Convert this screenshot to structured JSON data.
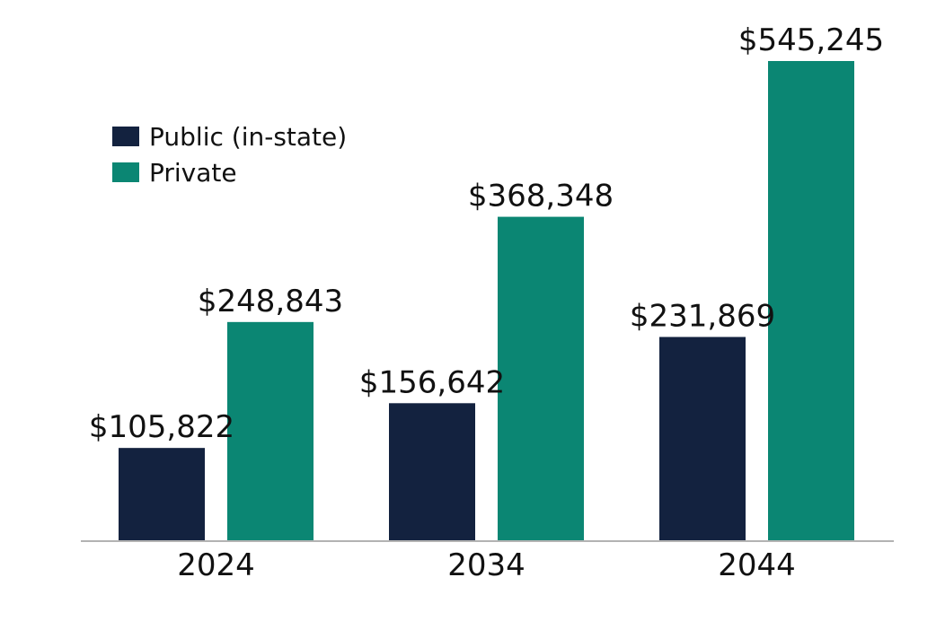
{
  "chart_data": {
    "type": "bar",
    "categories": [
      "2024",
      "2034",
      "2044"
    ],
    "series": [
      {
        "name": "Public (in-state)",
        "values": [
          105822,
          156642,
          231869
        ],
        "labels": [
          "$105,822",
          "$156,642",
          "$231,869"
        ],
        "color": "#13223f"
      },
      {
        "name": "Private",
        "values": [
          248843,
          368348,
          545245
        ],
        "labels": [
          "$248,843",
          "$368,348",
          "$545,245"
        ],
        "color": "#0b8673"
      }
    ],
    "title": "",
    "xlabel": "",
    "ylabel": "",
    "ylim": [
      0,
      545245
    ],
    "grid": false,
    "legend": "top-left",
    "axis_color": "#b3b3b3"
  }
}
